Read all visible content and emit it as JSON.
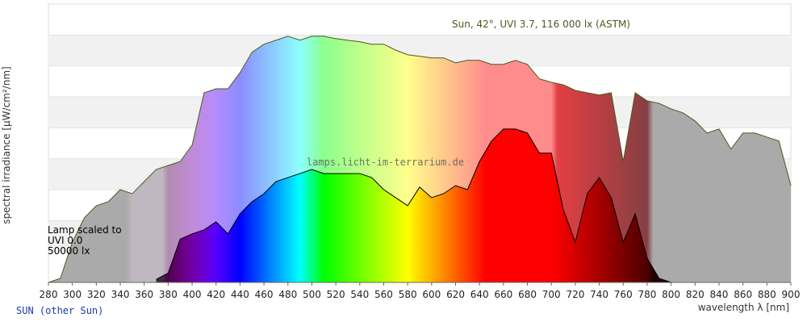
{
  "chart_data": {
    "type": "area",
    "title": "Sun, 42°, UVI 3.7, 116 000 lx (ASTM)",
    "watermark": "lamps.licht-im-terrarium.de",
    "annotation": [
      "Lamp scaled to",
      "UVI 0.0",
      "50000 lx"
    ],
    "footer": "SUN (other Sun)",
    "y_label": "spectral irradiance [µW/cm²/nm]",
    "x_label": "wavelength λ [nm]",
    "xlim": [
      280,
      900
    ],
    "xticks": [
      280,
      300,
      320,
      340,
      360,
      380,
      400,
      420,
      440,
      460,
      480,
      500,
      520,
      540,
      560,
      580,
      600,
      620,
      640,
      660,
      680,
      700,
      720,
      740,
      760,
      780,
      800,
      820,
      840,
      860,
      880,
      900
    ],
    "ylim": [
      0,
      9
    ],
    "grid_lines": [
      1,
      2,
      3,
      4,
      5,
      6,
      7,
      8
    ],
    "series": [
      {
        "name": "Sun",
        "color": "#4a5a20",
        "x": [
          280,
          290,
          300,
          310,
          320,
          330,
          340,
          350,
          360,
          370,
          380,
          390,
          400,
          410,
          420,
          430,
          440,
          450,
          460,
          470,
          480,
          490,
          500,
          510,
          520,
          530,
          540,
          550,
          560,
          570,
          580,
          590,
          600,
          610,
          620,
          630,
          640,
          650,
          660,
          670,
          680,
          690,
          700,
          710,
          720,
          730,
          740,
          750,
          760,
          770,
          780,
          790,
          800,
          810,
          820,
          830,
          840,
          850,
          860,
          870,
          880,
          890,
          900
        ],
        "values": [
          0,
          0.13,
          1.3,
          2.09,
          2.48,
          2.61,
          3.0,
          2.87,
          3.26,
          3.65,
          3.78,
          3.91,
          4.44,
          6.13,
          6.26,
          6.26,
          6.78,
          7.44,
          7.7,
          7.83,
          7.96,
          7.83,
          7.96,
          7.96,
          7.88,
          7.83,
          7.78,
          7.7,
          7.7,
          7.51,
          7.36,
          7.31,
          7.26,
          7.26,
          7.1,
          7.18,
          7.18,
          7.05,
          7.05,
          7.18,
          7.05,
          6.58,
          6.47,
          6.39,
          6.21,
          6.13,
          6.06,
          6.13,
          3.91,
          6.13,
          5.87,
          5.79,
          5.61,
          5.48,
          5.22,
          4.83,
          4.96,
          4.31,
          4.83,
          4.83,
          4.7,
          4.57,
          3.13
        ]
      },
      {
        "name": "Lamp",
        "color": "#000000",
        "x": [
          370,
          380,
          390,
          400,
          410,
          420,
          430,
          440,
          450,
          460,
          470,
          480,
          490,
          500,
          510,
          520,
          530,
          540,
          550,
          560,
          570,
          580,
          590,
          600,
          610,
          620,
          630,
          640,
          650,
          660,
          670,
          680,
          690,
          700,
          710,
          720,
          730,
          740,
          750,
          760,
          770,
          780,
          790,
          800
        ],
        "values": [
          0.1,
          0.3,
          1.4,
          1.57,
          1.7,
          1.96,
          1.57,
          2.22,
          2.61,
          2.87,
          3.26,
          3.39,
          3.52,
          3.65,
          3.52,
          3.52,
          3.52,
          3.52,
          3.39,
          3.0,
          2.74,
          2.48,
          3.08,
          2.74,
          2.87,
          3.13,
          3.0,
          3.91,
          4.57,
          4.96,
          4.96,
          4.83,
          4.18,
          4.18,
          2.35,
          1.3,
          2.87,
          3.39,
          2.74,
          1.3,
          2.22,
          0.78,
          0.13,
          0
        ]
      }
    ]
  }
}
